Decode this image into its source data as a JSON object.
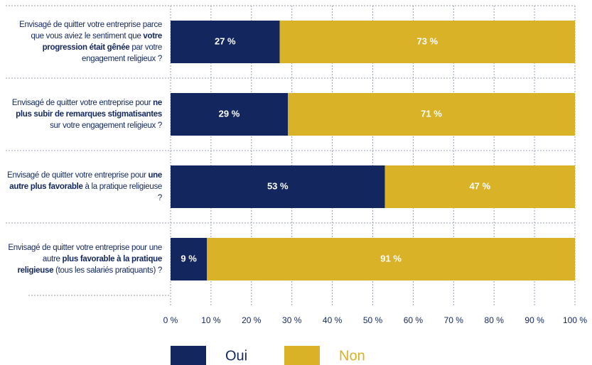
{
  "chart_data": {
    "type": "stacked-barh",
    "categories": [
      [
        {
          "text": "Envisagé de quitter votre entreprise parce que vous aviez le sentiment que ",
          "bold": false
        },
        {
          "text": "votre progression était gênée",
          "bold": true
        },
        {
          "text": " par votre engagement religieux ?",
          "bold": false
        }
      ],
      [
        {
          "text": "Envisagé de quitter votre entreprise pour ",
          "bold": false
        },
        {
          "text": "ne plus subir de remarques stigmatisantes",
          "bold": true
        },
        {
          "text": " sur votre engagement religieux ?",
          "bold": false
        }
      ],
      [
        {
          "text": "Envisagé de quitter votre entreprise pour ",
          "bold": false
        },
        {
          "text": "une autre plus favorable",
          "bold": true
        },
        {
          "text": " à la pratique religieuse ?",
          "bold": false
        }
      ],
      [
        {
          "text": "Envisagé de quitter votre entreprise pour une autre ",
          "bold": false
        },
        {
          "text": "plus favorable à la pratique religieuse",
          "bold": true
        },
        {
          "text": " (tous les salariés pratiquants) ?",
          "bold": false
        }
      ]
    ],
    "series": [
      {
        "name": "Oui",
        "color": "#13275e",
        "values": [
          27,
          29,
          53,
          9
        ],
        "value_labels": [
          "27 %",
          "29 %",
          "53 %",
          "9 %"
        ]
      },
      {
        "name": "Non",
        "color": "#d9b227",
        "values": [
          73,
          71,
          47,
          91
        ],
        "value_labels": [
          "73 %",
          "71 %",
          "47 %",
          "91 %"
        ]
      }
    ],
    "xlim": [
      0,
      100
    ],
    "xticks": [
      {
        "value": 0,
        "label": "0 %"
      },
      {
        "value": 10,
        "label": "10 %"
      },
      {
        "value": 20,
        "label": "20 %"
      },
      {
        "value": 30,
        "label": "30 %"
      },
      {
        "value": 40,
        "label": "40 %"
      },
      {
        "value": 50,
        "label": "50 %"
      },
      {
        "value": 60,
        "label": "60 %"
      },
      {
        "value": 70,
        "label": "70 %"
      },
      {
        "value": 80,
        "label": "80 %"
      },
      {
        "value": 90,
        "label": "90 %"
      },
      {
        "value": 100,
        "label": "100 %"
      }
    ],
    "grid": true,
    "legend": "bottom"
  }
}
